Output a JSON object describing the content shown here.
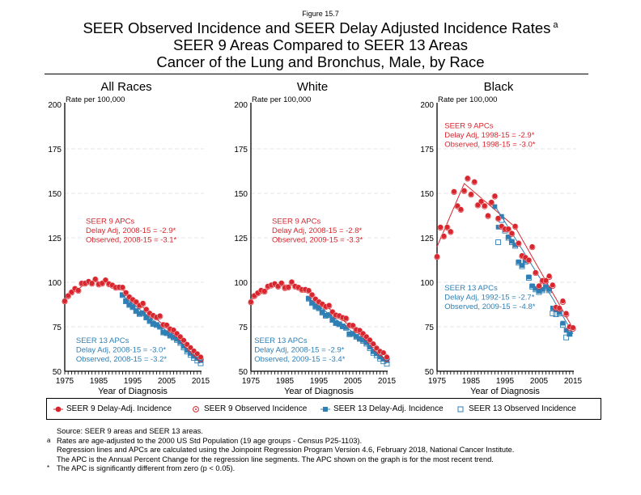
{
  "figure_label": "Figure 15.7",
  "title_lines": [
    "SEER Observed Incidence and SEER Delay Adjusted Incidence Rates",
    "SEER 9 Areas Compared to SEER 13 Areas",
    "Cancer of the Lung and Bronchus, Male, by Race"
  ],
  "title_superscript": "a",
  "colors": {
    "seer9": "#d7262e",
    "seer13": "#2f7fb5",
    "grid": "#dddddd"
  },
  "legend": [
    {
      "label": "SEER 9 Delay-Adj. Incidence",
      "series": "seer9_delay",
      "icon": "filled-circle-marker"
    },
    {
      "label": "SEER 9 Observed Incidence",
      "series": "seer9_observed",
      "icon": "hollow-circle-marker"
    },
    {
      "label": "SEER 13 Delay-Adj. Incidence",
      "series": "seer13_delay",
      "icon": "filled-square-marker"
    },
    {
      "label": "SEER 13 Observed Incidence",
      "series": "seer13_observed",
      "icon": "hollow-square-marker"
    }
  ],
  "notes": [
    {
      "marker": "",
      "text": "Source: SEER 9 areas and SEER 13 areas."
    },
    {
      "marker": "a",
      "text": "Rates are age-adjusted to the 2000 US Std Population (19 age groups - Census P25-1103)."
    },
    {
      "marker": "",
      "text": "Regression lines and APCs are calculated using the Joinpoint Regression Program Version 4.6, February 2018, National Cancer Institute."
    },
    {
      "marker": "",
      "text": "The APC is the Annual Percent Change for the regression line segments. The APC shown on the graph is for the most recent trend."
    },
    {
      "marker": "*",
      "text": "The APC is significantly different from zero (p < 0.05)."
    }
  ],
  "chart_data": [
    {
      "type": "scatter",
      "title": "All Races",
      "xlabel": "Year of Diagnosis",
      "ylabel": "Rate per 100,000",
      "xlim": [
        1975,
        2015
      ],
      "ylim": [
        50,
        200
      ],
      "xticks": [
        1975,
        1985,
        1995,
        2005,
        2015
      ],
      "yticks": [
        50,
        75,
        100,
        125,
        150,
        175,
        200
      ],
      "grid": true,
      "annotations": [
        {
          "group": "seer9",
          "lines": [
            "SEER 9 APCs",
            "Delay Adj, 2008-15 = -2.9*",
            "Observed, 2008-15 = -3.1*"
          ],
          "anchor": [
            1981.2,
            133
          ]
        },
        {
          "group": "seer13",
          "lines": [
            "SEER 13 APCs",
            "Delay Adj, 2008-15 = -3.0*",
            "Observed, 2008-15 = -3.2*"
          ],
          "anchor": [
            1978.3,
            66
          ]
        }
      ],
      "series": [
        {
          "name": "SEER 9 Delay-Adj. Incidence",
          "start_year": 1975,
          "values": [
            89.5,
            92.5,
            94.5,
            96.5,
            95.5,
            99.5,
            99.5,
            100.5,
            99.5,
            101.8,
            99,
            99.5,
            101.3,
            99.2,
            98.4,
            97.2,
            97.3,
            97.2,
            94.2,
            91.8,
            90.3,
            89,
            87,
            88.2,
            84.8,
            82.6,
            81.4,
            80.4,
            81.1,
            76.2,
            76,
            73.8,
            73.2,
            71.2,
            69.4,
            67.4,
            65.1,
            63.3,
            61.4,
            59.8,
            58
          ]
        },
        {
          "name": "SEER 9 Observed Incidence",
          "start_year": 1975,
          "values": [
            89.3,
            92.3,
            94.3,
            96.3,
            95.3,
            99.3,
            99.3,
            100.3,
            99.3,
            101.6,
            98.8,
            99.3,
            101.1,
            99,
            98.2,
            97,
            97.1,
            97,
            94,
            91.6,
            90.1,
            88.8,
            86.8,
            88,
            84.6,
            82.4,
            81.2,
            80.2,
            80.9,
            76,
            75.7,
            73.5,
            72.8,
            70.8,
            68.9,
            66.8,
            64.5,
            62.5,
            60.5,
            58.8,
            56.8
          ]
        },
        {
          "name": "SEER 13 Delay-Adj. Incidence",
          "start_year": 1992,
          "values": [
            93,
            89.5,
            87.5,
            86.2,
            84,
            82.4,
            82.8,
            80.4,
            78.4,
            76.8,
            76.2,
            75.2,
            72,
            71.6,
            70.2,
            69.2,
            68,
            66.4,
            64,
            61.8,
            60,
            58.4,
            57.2,
            56
          ]
        },
        {
          "name": "SEER 13 Observed Incidence",
          "start_year": 1992,
          "values": [
            92.8,
            89.3,
            87.3,
            86,
            83.8,
            82.2,
            82.6,
            80.2,
            78.2,
            76.6,
            76,
            75,
            71.8,
            71.4,
            70,
            69,
            67.6,
            65.9,
            63.4,
            61.1,
            59.2,
            57.5,
            56,
            54.5
          ]
        }
      ],
      "regression_lines": [
        {
          "group": "seer9",
          "points": [
            [
              1975,
              90.5
            ],
            [
              1982,
              100.5
            ],
            [
              1987,
              100
            ],
            [
              1991,
              97.5
            ],
            [
              2015,
              58
            ]
          ]
        },
        {
          "group": "seer13",
          "points": [
            [
              1992,
              92.5
            ],
            [
              2008,
              68
            ],
            [
              2015,
              55.5
            ]
          ]
        }
      ]
    },
    {
      "type": "scatter",
      "title": "White",
      "xlabel": "Year of Diagnosis",
      "ylabel": "Rate per 100,000",
      "xlim": [
        1975,
        2015
      ],
      "ylim": [
        50,
        200
      ],
      "xticks": [
        1975,
        1985,
        1995,
        2005,
        2015
      ],
      "yticks": [
        50,
        75,
        100,
        125,
        150,
        175,
        200
      ],
      "grid": true,
      "annotations": [
        {
          "group": "seer9",
          "lines": [
            "SEER 9 APCs",
            "Delay Adj, 2008-15 = -2.8*",
            "Observed, 2009-15 = -3.3*"
          ],
          "anchor": [
            1981.2,
            133
          ]
        },
        {
          "group": "seer13",
          "lines": [
            "SEER 13 APCs",
            "Delay Adj, 2008-15 = -2.9*",
            "Observed, 2009-15 = -3.4*"
          ],
          "anchor": [
            1976,
            66
          ]
        }
      ],
      "series": [
        {
          "name": "SEER 9 Delay-Adj. Incidence",
          "start_year": 1975,
          "values": [
            89,
            92.5,
            94,
            95.5,
            95,
            97.8,
            98.5,
            99.2,
            97.8,
            99.6,
            97,
            97.3,
            100.2,
            97.8,
            97.2,
            96,
            96,
            95.4,
            93,
            90.6,
            89,
            87.8,
            86.4,
            87,
            83.4,
            81.6,
            81.2,
            80.2,
            79.8,
            76,
            75.8,
            73.4,
            73,
            71.2,
            69.4,
            67.6,
            65.4,
            63,
            61.2,
            60.4,
            58
          ]
        },
        {
          "name": "SEER 9 Observed Incidence",
          "start_year": 1975,
          "values": [
            88.8,
            92.3,
            93.8,
            95.3,
            94.8,
            97.6,
            98.3,
            99,
            97.6,
            99.4,
            96.8,
            97.1,
            100,
            97.6,
            97,
            95.8,
            95.8,
            95.2,
            92.8,
            90.4,
            88.8,
            87.6,
            86.2,
            86.8,
            83.2,
            81.4,
            81,
            80,
            79.6,
            75.8,
            75.5,
            73.1,
            72.6,
            70.8,
            68.9,
            67,
            64.8,
            62.3,
            60.4,
            59.4,
            57
          ]
        },
        {
          "name": "SEER 13 Delay-Adj. Incidence",
          "start_year": 1992,
          "values": [
            91,
            88.5,
            86.5,
            85.6,
            83.2,
            81.4,
            81.8,
            79,
            77.2,
            76.6,
            75.4,
            74.6,
            71,
            71.2,
            69.6,
            68.4,
            67.4,
            66,
            63.6,
            61,
            59.8,
            58,
            56.8,
            56
          ]
        },
        {
          "name": "SEER 13 Observed Incidence",
          "start_year": 1992,
          "values": [
            90.8,
            88.3,
            86.3,
            85.4,
            83,
            81.2,
            81.6,
            78.8,
            77,
            76.4,
            75.2,
            74.4,
            70.8,
            71,
            69.4,
            68.2,
            67,
            65.5,
            63,
            60.3,
            59,
            57.1,
            55.6,
            54.2
          ]
        }
      ],
      "regression_lines": [
        {
          "group": "seer9",
          "points": [
            [
              1975,
              90
            ],
            [
              1982,
              98.5
            ],
            [
              1987,
              98.5
            ],
            [
              1991,
              96.5
            ],
            [
              2015,
              58
            ]
          ]
        },
        {
          "group": "seer13",
          "points": [
            [
              1992,
              91
            ],
            [
              2008,
              67.5
            ],
            [
              2015,
              55.2
            ]
          ]
        }
      ]
    },
    {
      "type": "scatter",
      "title": "Black",
      "xlabel": "Year of Diagnosis",
      "ylabel": "Rate per 100,000",
      "xlim": [
        1975,
        2015
      ],
      "ylim": [
        50,
        200
      ],
      "xticks": [
        1975,
        1985,
        1995,
        2005,
        2015
      ],
      "yticks": [
        50,
        75,
        100,
        125,
        150,
        175,
        200
      ],
      "grid": true,
      "annotations": [
        {
          "group": "seer9",
          "lines": [
            "SEER 9 APCs",
            "Delay Adj, 1998-15 = -2.9*",
            "Observed, 1998-15 = -3.0*"
          ],
          "anchor": [
            1977.2,
            186.5
          ]
        },
        {
          "group": "seer13",
          "lines": [
            "SEER 13 APCs",
            "Delay Adj, 1992-15 = -2.7*",
            "Observed, 2009-15 = -4.8*"
          ],
          "anchor": [
            1977.2,
            95.5
          ]
        }
      ],
      "series": [
        {
          "name": "SEER 9 Delay-Adj. Incidence",
          "start_year": 1975,
          "values": [
            114.5,
            131,
            126,
            131,
            128.5,
            151,
            143,
            141,
            151.5,
            158.5,
            149.5,
            156.5,
            143.5,
            145.5,
            143,
            137.5,
            145,
            148.5,
            136,
            131.5,
            130,
            130,
            127.5,
            131.5,
            122,
            115,
            114,
            112.5,
            120,
            105.5,
            98,
            101,
            101,
            103.5,
            98.5,
            86,
            85.5,
            89.5,
            82.5,
            75,
            74.5
          ]
        },
        {
          "name": "SEER 9 Observed Incidence",
          "start_year": 1975,
          "values": [
            114.3,
            130.8,
            125.8,
            130.8,
            128.3,
            150.8,
            142.8,
            140.8,
            151.3,
            158.3,
            149.3,
            156.3,
            143.3,
            145.3,
            142.8,
            137.3,
            144.8,
            148.3,
            135.8,
            131.3,
            129.8,
            129.8,
            127.3,
            131.3,
            121.8,
            114.8,
            113.8,
            112.3,
            119.8,
            105.3,
            97.8,
            100.6,
            100.6,
            103,
            98,
            85.5,
            85,
            89,
            82,
            74.5,
            74
          ]
        },
        {
          "name": "SEER 13 Delay-Adj. Incidence",
          "start_year": 1992,
          "values": [
            142.5,
            131,
            137,
            129.5,
            125.5,
            123,
            121,
            111.5,
            109.5,
            112,
            103,
            98,
            96.5,
            95,
            96,
            97.5,
            96,
            85.5,
            84.5,
            83,
            77,
            73,
            71
          ]
        },
        {
          "name": "SEER 13 Observed Incidence",
          "start_year": 1993,
          "values": [
            122.5,
            135,
            129,
            125,
            122.5,
            120.5,
            111,
            109,
            111.5,
            102.5,
            97.5,
            96,
            94.5,
            95.5,
            97,
            95.5,
            82.5,
            82,
            82.5,
            76,
            69,
            71
          ]
        }
      ],
      "regression_lines": [
        {
          "group": "seer9",
          "points": [
            [
              1975,
              120
            ],
            [
              1983,
              155.5
            ],
            [
              1998,
              131
            ],
            [
              2015,
              74
            ]
          ]
        },
        {
          "group": "seer13",
          "points": [
            [
              1992,
              143
            ],
            [
              2009,
              91
            ],
            [
              2015,
              71
            ]
          ]
        }
      ]
    }
  ]
}
